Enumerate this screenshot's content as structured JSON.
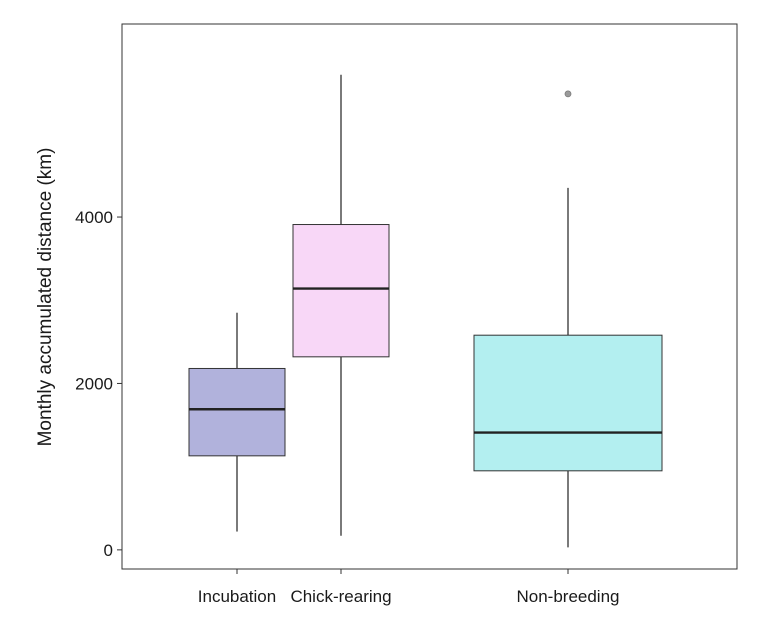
{
  "chart_data": {
    "type": "boxplot",
    "title": "",
    "xlabel": "",
    "ylabel": "Monthly accumulated distance (km)",
    "ylim": [
      -230,
      6320
    ],
    "yticks": [
      0,
      2000,
      4000
    ],
    "ytick_labels": [
      "0",
      "2000",
      "4000"
    ],
    "grid": false,
    "legend": "none",
    "categories": [
      "Incubation",
      "Chick-rearing",
      "Non-breeding"
    ],
    "boxes": [
      {
        "category": "Incubation",
        "whisker_low": 220,
        "q1": 1130,
        "median": 1690,
        "q3": 2180,
        "whisker_high": 2850,
        "outliers": [],
        "color": "#b1b2dc"
      },
      {
        "category": "Chick-rearing",
        "whisker_low": 170,
        "q1": 2320,
        "median": 3140,
        "q3": 3910,
        "whisker_high": 5710,
        "outliers": [],
        "color": "#f8d7f7"
      },
      {
        "category": "Non-breeding",
        "whisker_low": 30,
        "q1": 950,
        "median": 1410,
        "q3": 2580,
        "whisker_high": 4350,
        "outliers": [
          5480
        ],
        "color": "#b3eff0"
      }
    ]
  }
}
